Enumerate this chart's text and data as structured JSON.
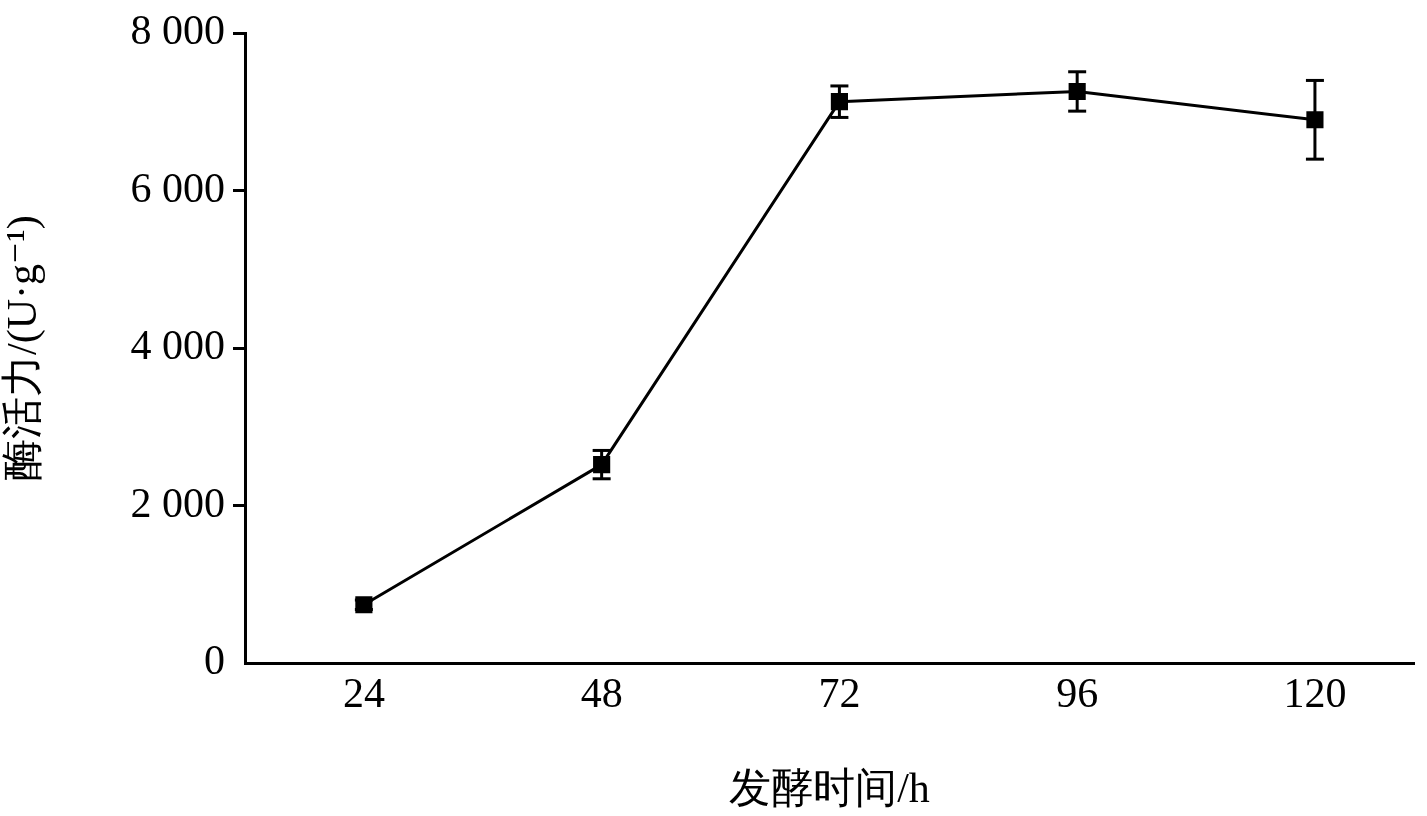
{
  "chart_data": {
    "type": "line",
    "xlabel": "发酵时间/h",
    "ylabel": "酶活力/(U·g⁻¹)",
    "x": [
      24,
      48,
      72,
      96,
      120
    ],
    "series": [
      {
        "color": "#000000",
        "values": [
          740,
          2520,
          7130,
          7260,
          6900
        ],
        "errors": [
          60,
          180,
          200,
          250,
          500
        ]
      }
    ],
    "xlim": [
      12,
      130
    ],
    "xticks": [
      24,
      48,
      72,
      96,
      120
    ],
    "ylim": [
      0,
      8000
    ],
    "yticks": [
      0,
      {
        "value": 2000,
        "label": "2 000"
      },
      {
        "value": 4000,
        "label": "4 000"
      },
      {
        "value": 6000,
        "label": "6 000"
      },
      {
        "value": 8000,
        "label": "8 000"
      }
    ],
    "marker": "square",
    "line_style": "solid",
    "grid": false,
    "legend": false
  }
}
